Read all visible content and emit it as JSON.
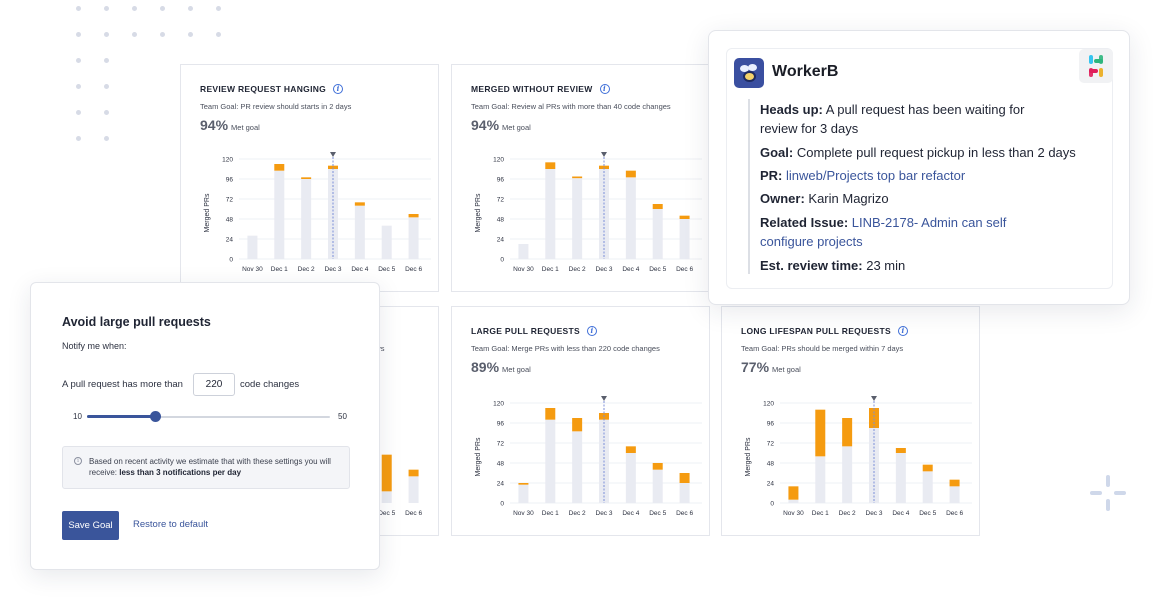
{
  "cards": [
    {
      "title": "REVIEW REQUEST HANGING",
      "goal": "Team Goal: PR review should starts in 2 days",
      "pct": "94%",
      "met": "Met goal"
    },
    {
      "title": "MERGED WITHOUT REVIEW",
      "goal": "Team Goal: Review al PRs with more than 40 code changes",
      "pct": "94%",
      "met": "Met goal"
    },
    {
      "title": "",
      "goal": "ys",
      "pct": "",
      "met": ""
    },
    {
      "title": "LARGE PULL REQUESTS",
      "goal": "Team Goal: Merge PRs with less than 220 code changes",
      "pct": "89%",
      "met": "Met goal"
    },
    {
      "title": "LONG LIFESPAN PULL REQUESTS",
      "goal": "Team Goal: PRs should be merged within 7 days",
      "pct": "77%",
      "met": "Met goal"
    }
  ],
  "chart_data": [
    {
      "type": "bar",
      "ylabel": "Merged PRs",
      "ylim": [
        0,
        120
      ],
      "yticks": [
        "120",
        "96",
        "72",
        "48",
        "24",
        "0"
      ],
      "categories": [
        "Nov 30",
        "Dec 1",
        "Dec 2",
        "Dec 3",
        "Dec 4",
        "Dec 5",
        "Dec 6"
      ],
      "marker_category": "Dec 3",
      "series": [
        {
          "values": [
            28,
            106,
            96,
            108,
            64,
            40,
            50
          ]
        },
        {
          "values": [
            0,
            8,
            2,
            4,
            4,
            0,
            4
          ]
        }
      ],
      "colors": {
        "base": "#e9ebf2",
        "excess": "#f59b10",
        "marker": "#7c8fd8"
      }
    },
    {
      "type": "bar",
      "ylabel": "Merged PRs",
      "ylim": [
        0,
        120
      ],
      "yticks": [
        "120",
        "96",
        "72",
        "48",
        "24",
        "0"
      ],
      "categories": [
        "Nov 30",
        "Dec 1",
        "Dec 2",
        "Dec 3",
        "Dec 4",
        "Dec 5",
        "Dec 6"
      ],
      "marker_category": "Dec 3",
      "series": [
        {
          "values": [
            18,
            108,
            97,
            108,
            98,
            60,
            48
          ]
        },
        {
          "values": [
            0,
            8,
            2,
            4,
            8,
            6,
            4
          ]
        }
      ],
      "colors": {
        "base": "#e9ebf2",
        "excess": "#f59b10",
        "marker": "#7c8fd8"
      }
    },
    {
      "type": "bar",
      "ylabel": "",
      "ylim": [
        0,
        120
      ],
      "yticks": [],
      "categories": [
        "",
        "",
        "",
        "",
        "",
        "Dec 5",
        "Dec 6"
      ],
      "marker_category": "",
      "series": [
        {
          "values": [
            0,
            0,
            0,
            0,
            0,
            14,
            32
          ]
        },
        {
          "values": [
            0,
            0,
            0,
            0,
            0,
            44,
            8
          ]
        }
      ],
      "colors": {
        "base": "#e9ebf2",
        "excess": "#f59b10",
        "marker": "#7c8fd8"
      }
    },
    {
      "type": "bar",
      "ylabel": "Merged PRs",
      "ylim": [
        0,
        120
      ],
      "yticks": [
        "120",
        "96",
        "72",
        "48",
        "24",
        "0"
      ],
      "categories": [
        "Nov 30",
        "Dec 1",
        "Dec 2",
        "Dec 3",
        "Dec 4",
        "Dec 5",
        "Dec 6"
      ],
      "marker_category": "Dec 3",
      "series": [
        {
          "values": [
            22,
            100,
            86,
            100,
            60,
            40,
            24
          ]
        },
        {
          "values": [
            2,
            14,
            16,
            8,
            8,
            8,
            12
          ]
        }
      ],
      "colors": {
        "base": "#e9ebf2",
        "excess": "#f59b10",
        "marker": "#7c8fd8"
      }
    },
    {
      "type": "bar",
      "ylabel": "Merged PRs",
      "ylim": [
        0,
        120
      ],
      "yticks": [
        "120",
        "96",
        "72",
        "48",
        "24",
        "0"
      ],
      "categories": [
        "Nov 30",
        "Dec 1",
        "Dec 2",
        "Dec 3",
        "Dec 4",
        "Dec 5",
        "Dec 6"
      ],
      "marker_category": "Dec 3",
      "series": [
        {
          "values": [
            4,
            56,
            68,
            90,
            60,
            38,
            20
          ]
        },
        {
          "values": [
            16,
            56,
            34,
            24,
            6,
            8,
            8
          ]
        }
      ],
      "colors": {
        "base": "#e9ebf2",
        "excess": "#f59b10",
        "marker": "#7c8fd8"
      }
    }
  ],
  "modal": {
    "title": "Avoid large pull requests",
    "notify": "Notify me when:",
    "rule_prefix": "A pull request has more than",
    "value": "220",
    "rule_suffix": "code changes",
    "slider_min": "10",
    "slider_max": "50",
    "slider_fraction": 0.28,
    "note_text": "Based on recent activity we estimate that with these settings you will receive: ",
    "note_bold": "less than 3 notifications per day",
    "save": "Save Goal",
    "restore": "Restore to default",
    "accent": "#3a559b"
  },
  "slack": {
    "brand": "WorkerB",
    "heads_label": "Heads up:",
    "heads_text": " A pull request has been waiting for review for 3 days",
    "goal_label": "Goal:",
    "goal_text": " Complete pull request pickup in less than 2 days",
    "pr_label": "PR:",
    "pr_link": "linweb/Projects top bar refactor",
    "owner_label": "Owner:",
    "owner_text": " Karin Magrizo",
    "issue_label": "Related Issue:",
    "issue_link": "LINB-2178- Admin can self configure projects",
    "time_label": "Est. review time:",
    "time_text": " 23 min",
    "icons": [
      "workerb-bee-icon",
      "slack-logo-icon"
    ]
  }
}
